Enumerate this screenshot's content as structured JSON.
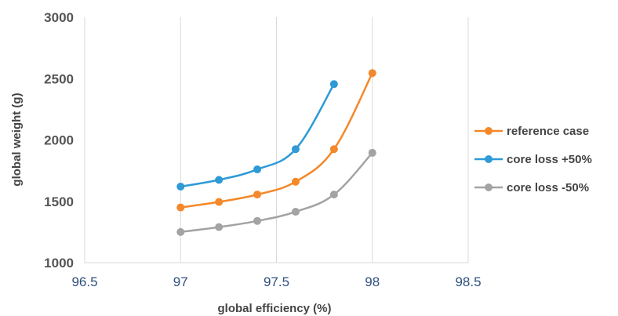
{
  "chart_data": {
    "type": "line",
    "xlabel": "global efficiency (%)",
    "ylabel": "global weight (g)",
    "xlim": [
      96.5,
      98.5
    ],
    "ylim": [
      1000,
      3000
    ],
    "x_ticks": [
      "96.5",
      "97",
      "97.5",
      "98",
      "98.5"
    ],
    "y_ticks": [
      "1000",
      "1500",
      "2000",
      "2500",
      "3000"
    ],
    "grid": "vertical",
    "legend_position": "right",
    "series": [
      {
        "name": "reference case",
        "color": "#f4882a",
        "x": [
          97,
          97.2,
          97.4,
          97.6,
          97.8,
          98
        ],
        "y": [
          1450,
          1495,
          1555,
          1660,
          1925,
          2545
        ]
      },
      {
        "name": "core loss +50%",
        "color": "#2e9ad6",
        "x": [
          97,
          97.2,
          97.4,
          97.6,
          97.8
        ],
        "y": [
          1620,
          1675,
          1760,
          1925,
          2455
        ]
      },
      {
        "name": "core loss -50%",
        "color": "#a3a3a3",
        "x": [
          97,
          97.2,
          97.4,
          97.6,
          97.8,
          98
        ],
        "y": [
          1250,
          1290,
          1340,
          1415,
          1555,
          1895
        ]
      }
    ]
  }
}
